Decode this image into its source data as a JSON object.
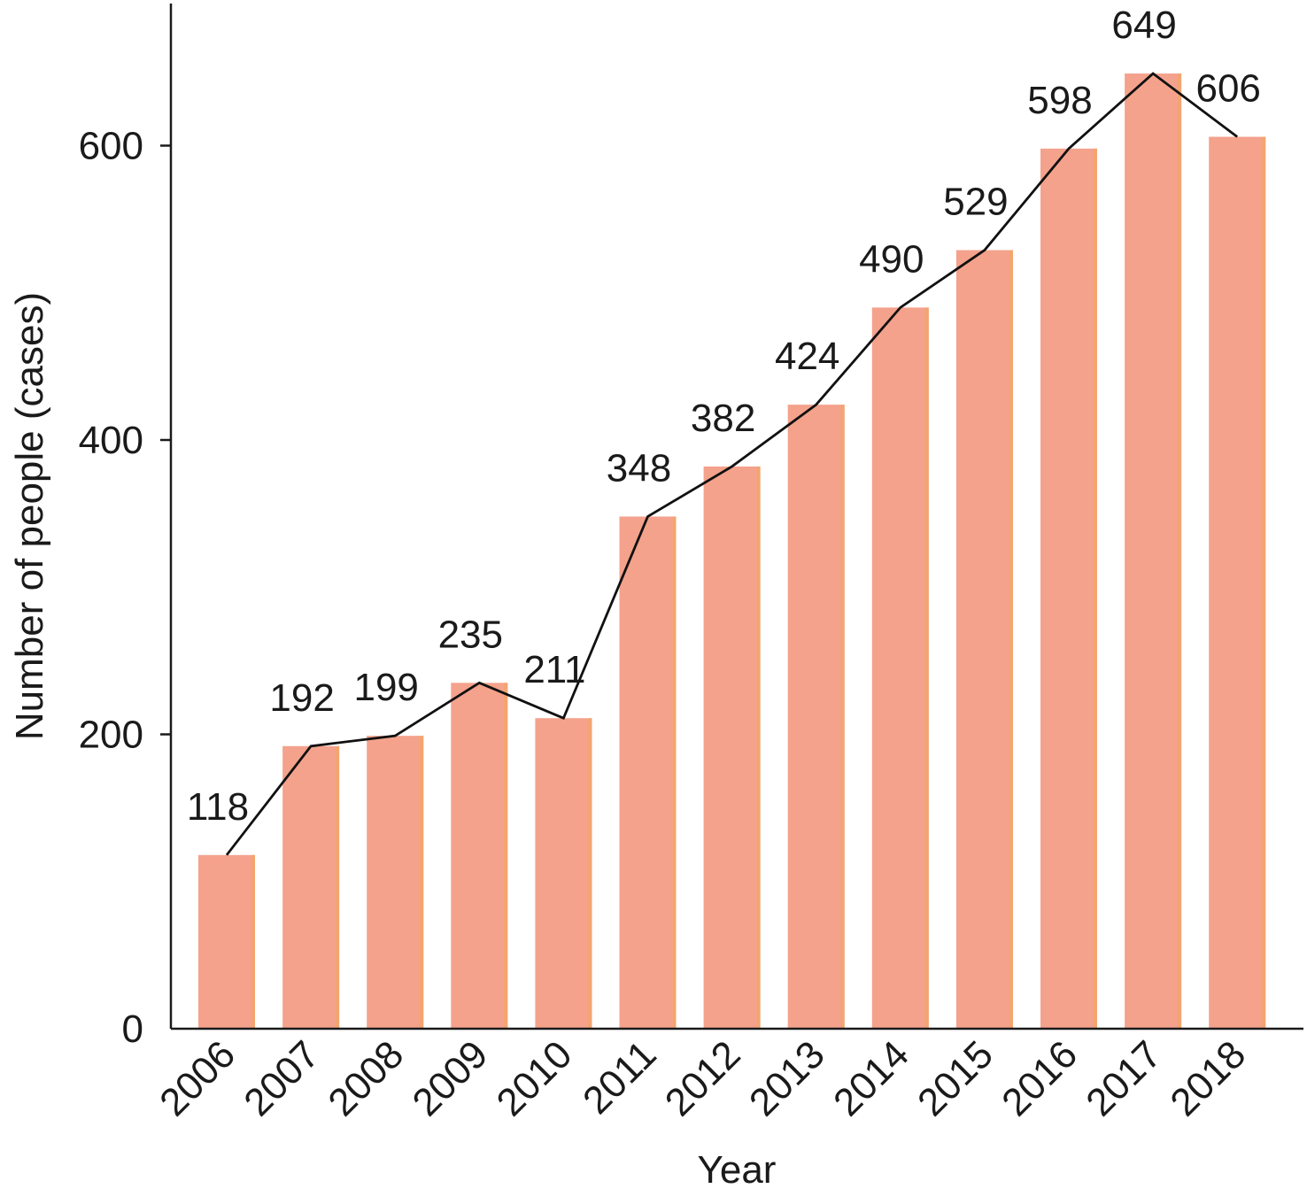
{
  "chart_data": {
    "type": "bar",
    "xlabel": "Year",
    "ylabel": "Number of people (cases)",
    "ylim": [
      0,
      700
    ],
    "yticks": [
      0,
      200,
      400,
      600
    ],
    "categories": [
      "2006",
      "2007",
      "2008",
      "2009",
      "2010",
      "2011",
      "2012",
      "2013",
      "2014",
      "2015",
      "2016",
      "2017",
      "2018"
    ],
    "values": [
      118,
      192,
      199,
      235,
      211,
      348,
      382,
      424,
      490,
      529,
      598,
      649,
      606
    ],
    "data_labels": [
      "118",
      "192",
      "199",
      "235",
      "211",
      "348",
      "382",
      "424",
      "490",
      "529",
      "598",
      "649",
      "606"
    ],
    "overlay": "line",
    "grid": false,
    "legend": "none",
    "colors": {
      "bar": "#f4a28c",
      "bar_edge": "#f3a56f",
      "line": "#111111",
      "axis": "#1a1a1a"
    }
  }
}
